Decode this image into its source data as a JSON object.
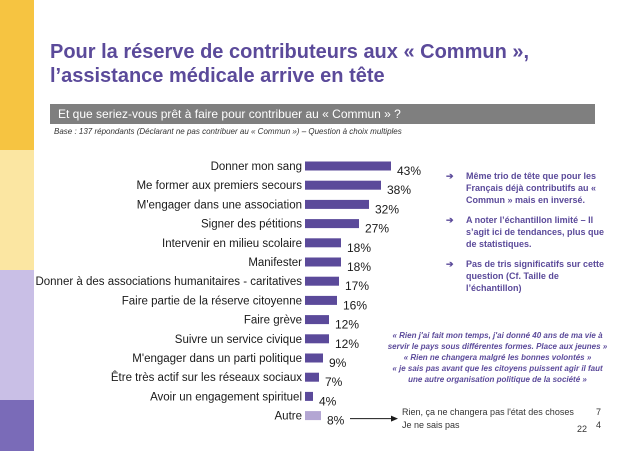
{
  "title_lines": [
    "Pour la réserve de contributeurs aux « Commun »,",
    "l’assistance médicale arrive en tête"
  ],
  "question": "Et que seriez-vous prêt à faire pour contribuer au « Commun » ?",
  "base": "Base : 137 répondants (Déclarant ne pas contribuer au « Commun ») – Question à choix multiples",
  "colors": {
    "accent": "#5b4a9a",
    "bar": "#5b4a9a",
    "bar_other": "#b3a6d3",
    "question_bg": "#7f7f7f"
  },
  "chart_data": {
    "type": "bar",
    "orientation": "horizontal",
    "categories": [
      "Donner mon sang",
      "Me former aux premiers secours",
      "M'engager dans une association",
      "Signer des pétitions",
      "Intervenir en milieu scolaire",
      "Manifester",
      "Donner à des associations humanitaires - caritatives",
      "Faire partie de la réserve citoyenne",
      "Faire grève",
      "Suivre un service civique",
      "M'engager dans un parti politique",
      "Être très actif sur les réseaux sociaux",
      "Avoir un engagement spirituel",
      "Autre"
    ],
    "values": [
      43,
      38,
      32,
      27,
      18,
      18,
      17,
      16,
      12,
      12,
      9,
      7,
      4,
      8
    ],
    "value_labels": [
      "43%",
      "38%",
      "32%",
      "27%",
      "18%",
      "18%",
      "17%",
      "16%",
      "12%",
      "12%",
      "9%",
      "7%",
      "4%",
      "8%"
    ],
    "highlight_other": "Autre",
    "grid": false
  },
  "notes": [
    "Même trio de tête que pour les Français déjà contributifs au « Commun » mais en inversé.",
    "A noter l’échantillon limité – Il s’agit ici de tendances, plus que de statistiques.",
    "Pas de tris significatifs sur cette question (Cf. Taille de l’échantillon)"
  ],
  "quote_lines": [
    "« Rien j'ai fait mon temps, j'ai donné 40 ans de ma vie à",
    "servir le pays sous différentes formes. Place aux jeunes »",
    "« Rien ne changera malgré les bonnes volontés »",
    "« je sais pas avant que les citoyens puissent agir il faut",
    "une autre organisation politique de la société »"
  ],
  "autre_breakdown": [
    {
      "label": "Rien, ça ne changera pas l'état des choses",
      "value": "7"
    },
    {
      "label": "Je ne sais pas",
      "value": "4"
    }
  ],
  "page_number": "22"
}
